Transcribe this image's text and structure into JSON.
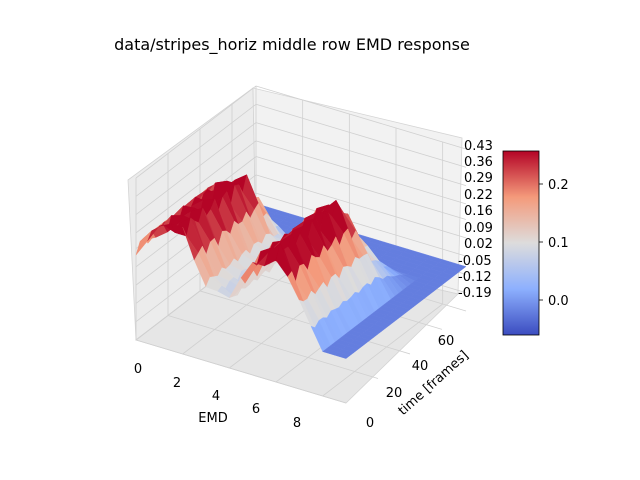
{
  "chart_data": {
    "type": "surface",
    "title": "data/stripes_horiz middle row EMD response",
    "xlabel": "EMD",
    "ylabel": "time [frames]",
    "x_ticks": [
      "0",
      "2",
      "4",
      "6",
      "8"
    ],
    "y_ticks": [
      "0",
      "20",
      "40",
      "60"
    ],
    "z_ticks": [
      "0.43",
      "0.36",
      "0.29",
      "0.22",
      "0.16",
      "0.09",
      "0.02",
      "-0.05",
      "-0.12",
      "-0.19"
    ],
    "x_range": [
      0,
      9
    ],
    "y_range": [
      0,
      75
    ],
    "z_range": [
      -0.19,
      0.43
    ],
    "colormap": "coolwarm",
    "colorbar": {
      "range": [
        -0.06,
        0.26
      ],
      "ticks": [
        "0.0",
        "0.1",
        "0.2"
      ]
    },
    "surface_description_values": {
      "emd_index": [
        0,
        1,
        2,
        3,
        4,
        5,
        6,
        7,
        8,
        9
      ],
      "peak_response_by_emd": [
        0.18,
        0.28,
        0.31,
        0.12,
        0.08,
        0.26,
        0.33,
        0.15,
        -0.02,
        -0.02
      ],
      "baseline_late_time": -0.02
    }
  }
}
